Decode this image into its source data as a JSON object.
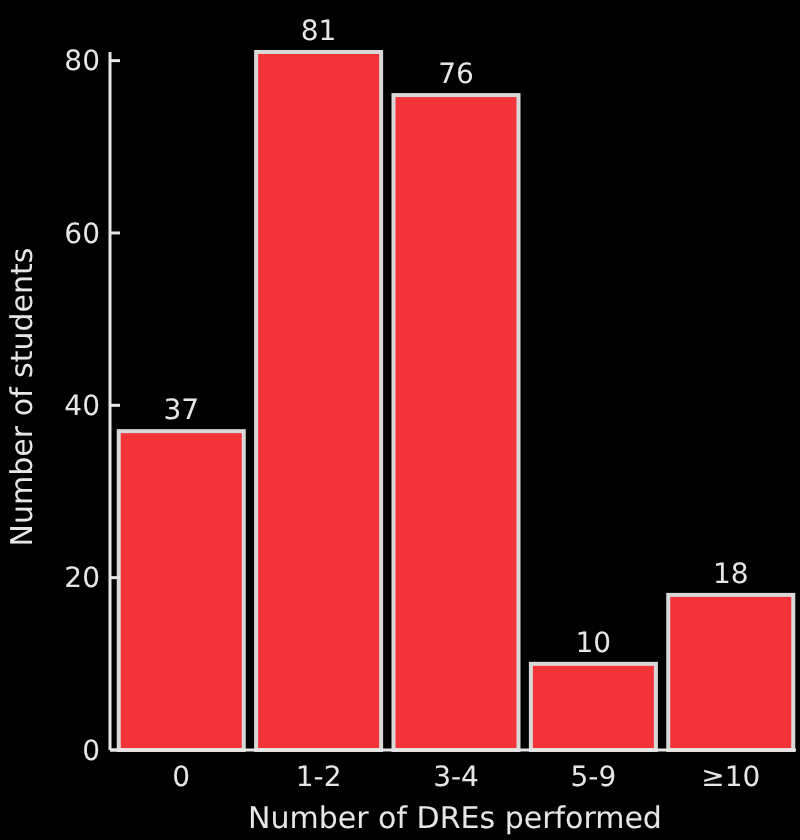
{
  "chart_data": {
    "type": "bar",
    "xlabel": "Number of DREs performed",
    "ylabel": "Number of students",
    "categories": [
      "0",
      "1-2",
      "3-4",
      "5-9",
      "≥10"
    ],
    "values": [
      37,
      81,
      76,
      10,
      18
    ],
    "color": "#f23338",
    "ylim": [
      0,
      81
    ],
    "yticks": [
      0,
      20,
      40,
      60,
      80
    ],
    "data_labels": true,
    "grid": false
  }
}
